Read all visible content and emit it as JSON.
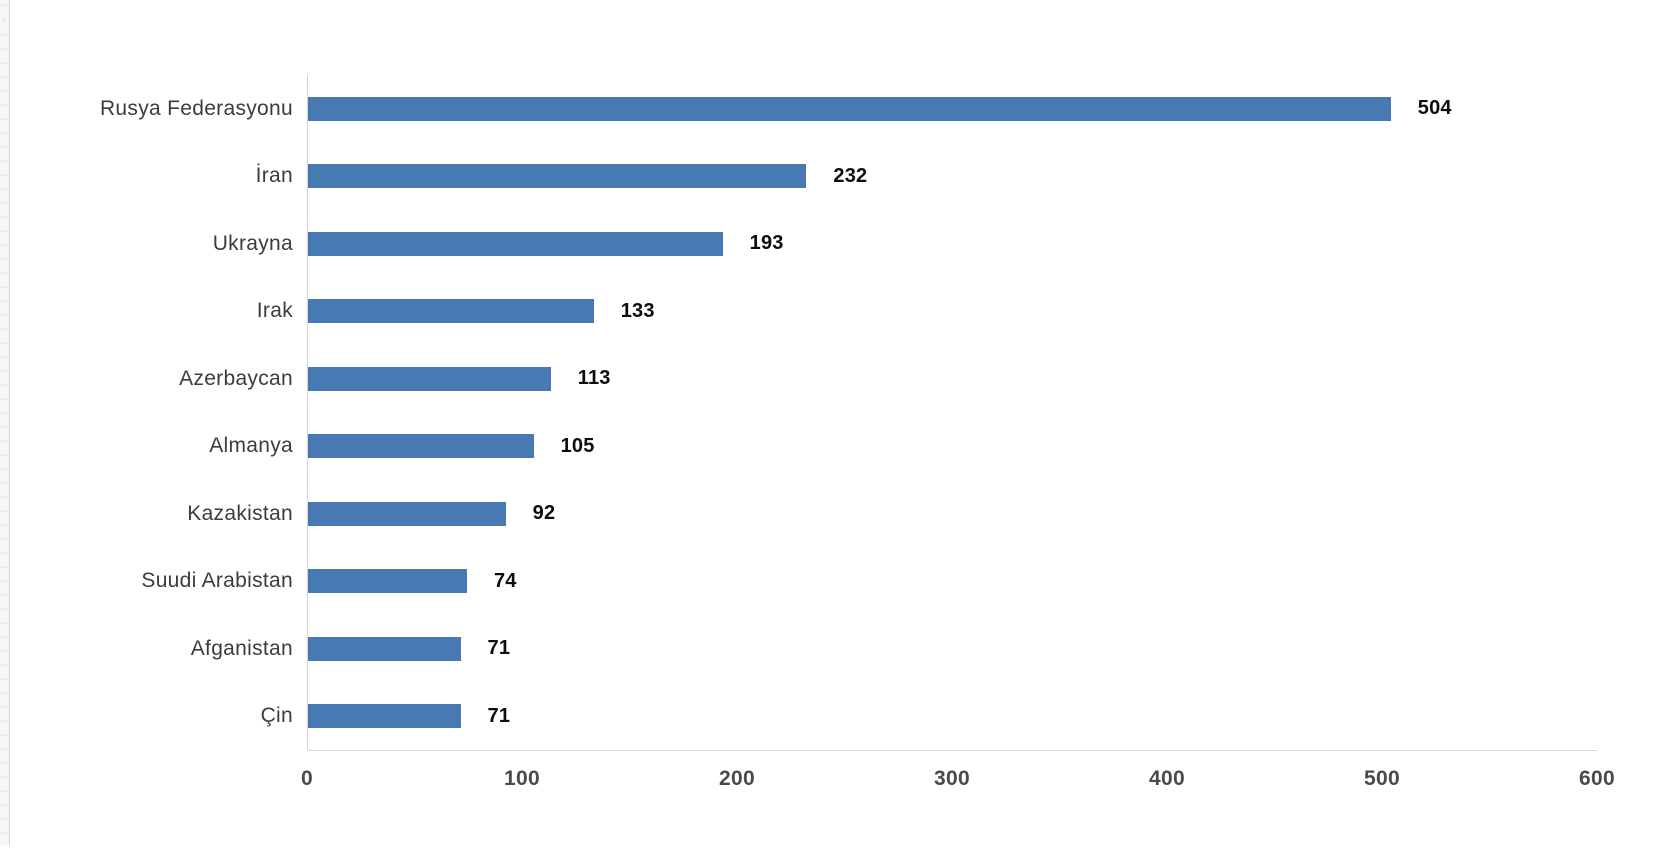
{
  "page": {
    "background_color": "#ffffff",
    "left_edge_strip": {
      "fill_color": "#f6f7f7",
      "border_color": "#ccd6dc"
    }
  },
  "colors": {
    "bar": "#4879b2",
    "axis_line": "#d4d4d4",
    "category_label": "#3c3c3c",
    "value_label": "#0d0d0d",
    "tick_label": "#4a4a4a"
  },
  "chart_data": {
    "type": "bar",
    "orientation": "horizontal",
    "title": "",
    "xlabel": "",
    "ylabel": "",
    "categories": [
      "Rusya Federasyonu",
      "İran",
      "Ukrayna",
      "Irak",
      "Azerbaycan",
      "Almanya",
      "Kazakistan",
      "Suudi Arabistan",
      "Afganistan",
      "Çin"
    ],
    "values": [
      504,
      232,
      193,
      133,
      113,
      105,
      92,
      74,
      71,
      71
    ],
    "value_labels": [
      "504",
      "232",
      "193",
      "133",
      "113",
      "105",
      "92",
      "74",
      "71",
      "71"
    ],
    "xlim": [
      0,
      600
    ],
    "x_ticks": [
      0,
      100,
      200,
      300,
      400,
      500,
      600
    ],
    "grid": false,
    "legend": false,
    "data_labels": true
  }
}
